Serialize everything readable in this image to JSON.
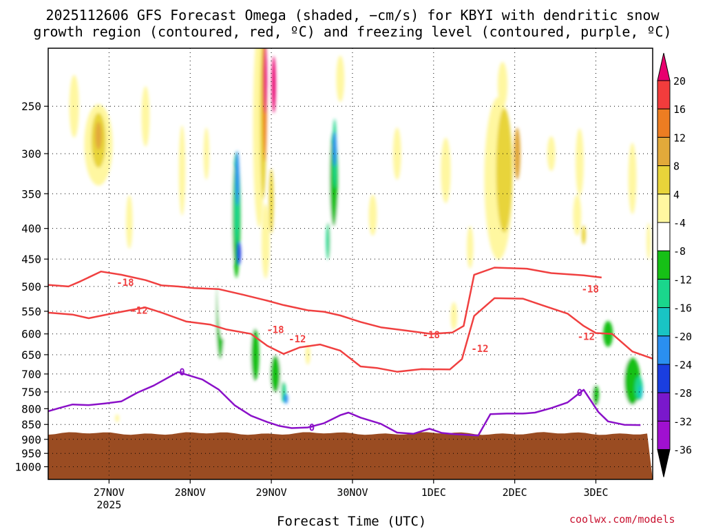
{
  "chart_data": {
    "type": "heatmap",
    "title_line1": "2025112606 GFS Forecast Omega (shaded, −cm/s) for KBYI with dendritic snow",
    "title_line2": "growth region (contoured, red, ºC) and freezing level (contoured, purple, ºC)",
    "xlabel": "Forecast Time (UTC)",
    "ylabel": "",
    "x_ticks": [
      {
        "label": "27NOV",
        "sub": "2025",
        "t": 0.75
      },
      {
        "label": "28NOV",
        "sub": "",
        "t": 1.75
      },
      {
        "label": "29NOV",
        "sub": "",
        "t": 2.75
      },
      {
        "label": "30NOV",
        "sub": "",
        "t": 3.75
      },
      {
        "label": "1DEC",
        "sub": "",
        "t": 4.75
      },
      {
        "label": "2DEC",
        "sub": "",
        "t": 5.75
      },
      {
        "label": "3DEC",
        "sub": "",
        "t": 6.75
      }
    ],
    "y_ticks": [
      250,
      300,
      350,
      400,
      450,
      500,
      550,
      600,
      650,
      700,
      750,
      800,
      850,
      900,
      950,
      1000
    ],
    "ylim_hPa": [
      200,
      1050
    ],
    "xlim_days": [
      0,
      7.45
    ],
    "surface_pressure_hPa": 880,
    "colorbar": {
      "levels": [
        "20",
        "16",
        "12",
        "8",
        "4",
        "-4",
        "-8",
        "-12",
        "-16",
        "-20",
        "-24",
        "-28",
        "-32",
        "-36"
      ],
      "colors": [
        "#e8006e",
        "#f23c3c",
        "#ed7d22",
        "#e2a93a",
        "#e8d43a",
        "#fff7a0",
        "#ffffff",
        "#16c016",
        "#1ad68c",
        "#19c4c4",
        "#2a8ff0",
        "#1a3ee0",
        "#7a18cc",
        "#a010d0",
        "#b4b4b4",
        "#000000"
      ]
    },
    "contours": {
      "dgz_minus18": {
        "label": "-18",
        "label_positions": [
          [
            0.95,
            492
          ],
          [
            2.8,
            590
          ],
          [
            4.72,
            602
          ],
          [
            6.68,
            505
          ]
        ],
        "points": [
          [
            0,
            497
          ],
          [
            0.25,
            500
          ],
          [
            0.4,
            490
          ],
          [
            0.65,
            472
          ],
          [
            0.9,
            478
          ],
          [
            1.2,
            488
          ],
          [
            1.4,
            498
          ],
          [
            1.6,
            500
          ],
          [
            1.8,
            503
          ],
          [
            2.1,
            505
          ],
          [
            2.4,
            516
          ],
          [
            2.7,
            528
          ],
          [
            2.9,
            537
          ],
          [
            3.2,
            548
          ],
          [
            3.4,
            551
          ],
          [
            3.6,
            559
          ],
          [
            3.85,
            573
          ],
          [
            4.1,
            585
          ],
          [
            4.4,
            592
          ],
          [
            4.72,
            600
          ],
          [
            4.98,
            597
          ],
          [
            5.12,
            582
          ],
          [
            5.25,
            478
          ],
          [
            5.5,
            465
          ],
          [
            5.9,
            467
          ],
          [
            6.2,
            475
          ],
          [
            6.6,
            479
          ],
          [
            6.82,
            483
          ]
        ]
      },
      "dgz_minus12": {
        "label": "-12",
        "label_positions": [
          [
            1.12,
            548
          ],
          [
            3.07,
            612
          ],
          [
            5.32,
            635
          ],
          [
            6.63,
            606
          ]
        ],
        "points": [
          [
            0,
            553
          ],
          [
            0.3,
            557
          ],
          [
            0.5,
            565
          ],
          [
            0.75,
            556
          ],
          [
            1.0,
            548
          ],
          [
            1.2,
            542
          ],
          [
            1.4,
            553
          ],
          [
            1.7,
            572
          ],
          [
            2.0,
            579
          ],
          [
            2.2,
            590
          ],
          [
            2.5,
            600
          ],
          [
            2.7,
            628
          ],
          [
            2.9,
            648
          ],
          [
            3.1,
            632
          ],
          [
            3.35,
            625
          ],
          [
            3.6,
            640
          ],
          [
            3.85,
            680
          ],
          [
            4.05,
            684
          ],
          [
            4.3,
            694
          ],
          [
            4.6,
            687
          ],
          [
            4.95,
            688
          ],
          [
            5.1,
            661
          ],
          [
            5.25,
            560
          ],
          [
            5.5,
            523
          ],
          [
            5.85,
            524
          ],
          [
            6.1,
            538
          ],
          [
            6.4,
            555
          ],
          [
            6.6,
            582
          ],
          [
            6.75,
            598
          ],
          [
            6.95,
            600
          ],
          [
            7.2,
            642
          ],
          [
            7.45,
            660
          ]
        ]
      },
      "freezing_level_0": {
        "label": "0",
        "label_positions": [
          [
            1.65,
            695
          ],
          [
            3.25,
            860
          ],
          [
            6.55,
            752
          ]
        ],
        "points": [
          [
            0,
            808
          ],
          [
            0.15,
            797
          ],
          [
            0.3,
            787
          ],
          [
            0.5,
            789
          ],
          [
            0.7,
            784
          ],
          [
            0.9,
            778
          ],
          [
            1.1,
            752
          ],
          [
            1.3,
            732
          ],
          [
            1.6,
            695
          ],
          [
            1.9,
            715
          ],
          [
            2.1,
            743
          ],
          [
            2.3,
            790
          ],
          [
            2.5,
            822
          ],
          [
            2.7,
            842
          ],
          [
            2.85,
            855
          ],
          [
            3.0,
            862
          ],
          [
            3.2,
            860
          ],
          [
            3.4,
            846
          ],
          [
            3.6,
            820
          ],
          [
            3.7,
            812
          ],
          [
            3.85,
            828
          ],
          [
            4.1,
            848
          ],
          [
            4.3,
            877
          ],
          [
            4.5,
            881
          ],
          [
            4.7,
            864
          ],
          [
            4.85,
            878
          ],
          [
            5.0,
            882
          ],
          [
            5.3,
            887
          ],
          [
            5.45,
            817
          ],
          [
            5.65,
            815
          ],
          [
            5.85,
            815
          ],
          [
            6.0,
            812
          ],
          [
            6.2,
            798
          ],
          [
            6.4,
            781
          ],
          [
            6.6,
            744
          ],
          [
            6.78,
            810
          ],
          [
            6.9,
            840
          ],
          [
            7.1,
            851
          ],
          [
            7.3,
            852
          ]
        ]
      }
    },
    "omega_blobs": [
      {
        "t": 0.62,
        "p": 290,
        "dt": 0.35,
        "dp": 90,
        "level": "4"
      },
      {
        "t": 0.62,
        "p": 285,
        "dt": 0.18,
        "dp": 60,
        "level": "8"
      },
      {
        "t": 0.62,
        "p": 280,
        "dt": 0.08,
        "dp": 30,
        "level": "12"
      },
      {
        "t": 0.15,
        "p": 330,
        "dt": 0.12,
        "dp": 50,
        "level": "-4"
      },
      {
        "t": 0.22,
        "p": 430,
        "dt": 0.1,
        "dp": 70,
        "level": "-4"
      },
      {
        "t": 0.32,
        "p": 250,
        "dt": 0.12,
        "dp": 60,
        "level": "4"
      },
      {
        "t": 1.0,
        "p": 390,
        "dt": 0.08,
        "dp": 80,
        "level": "4"
      },
      {
        "t": 1.2,
        "p": 260,
        "dt": 0.1,
        "dp": 60,
        "level": "4"
      },
      {
        "t": 0.55,
        "p": 610,
        "dt": 0.09,
        "dp": 60,
        "level": "-4"
      },
      {
        "t": 0.55,
        "p": 720,
        "dt": 0.06,
        "dp": 40,
        "level": "-4"
      },
      {
        "t": 1.65,
        "p": 320,
        "dt": 0.08,
        "dp": 110,
        "level": "4"
      },
      {
        "t": 1.95,
        "p": 300,
        "dt": 0.07,
        "dp": 60,
        "level": "4"
      },
      {
        "t": 2.1,
        "p": 600,
        "dt": 0.15,
        "dp": 260,
        "level": "-4"
      },
      {
        "t": 2.12,
        "p": 550,
        "dt": 0.1,
        "dp": 200,
        "level": "-8"
      },
      {
        "t": 2.15,
        "p": 480,
        "dt": 0.14,
        "dp": 230,
        "level": "-4"
      },
      {
        "t": 2.25,
        "p": 380,
        "dt": 0.18,
        "dp": 140,
        "level": "-4"
      },
      {
        "t": 2.32,
        "p": 380,
        "dt": 0.1,
        "dp": 180,
        "level": "-8"
      },
      {
        "t": 2.32,
        "p": 360,
        "dt": 0.07,
        "dp": 120,
        "level": "-12"
      },
      {
        "t": 2.33,
        "p": 330,
        "dt": 0.04,
        "dp": 70,
        "level": "-20"
      },
      {
        "t": 2.35,
        "p": 440,
        "dt": 0.04,
        "dp": 40,
        "level": "-24"
      },
      {
        "t": 2.5,
        "p": 620,
        "dt": 0.14,
        "dp": 180,
        "level": "-4"
      },
      {
        "t": 2.55,
        "p": 650,
        "dt": 0.1,
        "dp": 130,
        "level": "-8"
      },
      {
        "t": 2.6,
        "p": 760,
        "dt": 0.13,
        "dp": 80,
        "level": "-4"
      },
      {
        "t": 2.82,
        "p": 700,
        "dt": 0.2,
        "dp": 130,
        "level": "-4"
      },
      {
        "t": 2.8,
        "p": 700,
        "dt": 0.12,
        "dp": 100,
        "level": "-8"
      },
      {
        "t": 2.9,
        "p": 750,
        "dt": 0.06,
        "dp": 60,
        "level": "-12"
      },
      {
        "t": 2.93,
        "p": 770,
        "dt": 0.03,
        "dp": 30,
        "level": "-20"
      },
      {
        "t": 3.05,
        "p": 700,
        "dt": 0.1,
        "dp": 90,
        "level": "-4"
      },
      {
        "t": 2.6,
        "p": 270,
        "dt": 0.15,
        "dp": 200,
        "level": "4"
      },
      {
        "t": 2.65,
        "p": 260,
        "dt": 0.08,
        "dp": 160,
        "level": "8"
      },
      {
        "t": 2.67,
        "p": 240,
        "dt": 0.05,
        "dp": 120,
        "level": "16"
      },
      {
        "t": 2.67,
        "p": 225,
        "dt": 0.035,
        "dp": 60,
        "level": "20"
      },
      {
        "t": 2.78,
        "p": 230,
        "dt": 0.04,
        "dp": 50,
        "level": "20"
      },
      {
        "t": 2.75,
        "p": 360,
        "dt": 0.06,
        "dp": 90,
        "level": "8"
      },
      {
        "t": 2.68,
        "p": 420,
        "dt": 0.1,
        "dp": 120,
        "level": "4"
      },
      {
        "t": 3.5,
        "p": 360,
        "dt": 0.14,
        "dp": 160,
        "level": "-4"
      },
      {
        "t": 3.52,
        "p": 330,
        "dt": 0.1,
        "dp": 120,
        "level": "-8"
      },
      {
        "t": 3.53,
        "p": 300,
        "dt": 0.05,
        "dp": 80,
        "level": "-12"
      },
      {
        "t": 3.53,
        "p": 295,
        "dt": 0.025,
        "dp": 40,
        "level": "-20"
      },
      {
        "t": 3.45,
        "p": 420,
        "dt": 0.05,
        "dp": 60,
        "level": "-12"
      },
      {
        "t": 3.85,
        "p": 360,
        "dt": 0.1,
        "dp": 200,
        "level": "-4"
      },
      {
        "t": 3.25,
        "p": 340,
        "dt": 0.05,
        "dp": 80,
        "level": "-4"
      },
      {
        "t": 3.35,
        "p": 580,
        "dt": 0.12,
        "dp": 90,
        "level": "-4"
      },
      {
        "t": 3.65,
        "p": 620,
        "dt": 0.1,
        "dp": 100,
        "level": "-4"
      },
      {
        "t": 4.05,
        "p": 780,
        "dt": 0.06,
        "dp": 40,
        "level": "-4"
      },
      {
        "t": 3.6,
        "p": 225,
        "dt": 0.1,
        "dp": 40,
        "level": "4"
      },
      {
        "t": 4.3,
        "p": 300,
        "dt": 0.1,
        "dp": 60,
        "level": "4"
      },
      {
        "t": 4.0,
        "p": 380,
        "dt": 0.1,
        "dp": 60,
        "level": "4"
      },
      {
        "t": 4.9,
        "p": 320,
        "dt": 0.12,
        "dp": 80,
        "level": "4"
      },
      {
        "t": 5.55,
        "p": 330,
        "dt": 0.35,
        "dp": 200,
        "level": "4"
      },
      {
        "t": 5.62,
        "p": 320,
        "dt": 0.2,
        "dp": 150,
        "level": "8"
      },
      {
        "t": 5.78,
        "p": 300,
        "dt": 0.08,
        "dp": 60,
        "level": "12"
      },
      {
        "t": 5.6,
        "p": 230,
        "dt": 0.12,
        "dp": 40,
        "level": "4"
      },
      {
        "t": 6.2,
        "p": 300,
        "dt": 0.1,
        "dp": 40,
        "level": "4"
      },
      {
        "t": 6.55,
        "p": 310,
        "dt": 0.1,
        "dp": 80,
        "level": "4"
      },
      {
        "t": 6.52,
        "p": 380,
        "dt": 0.1,
        "dp": 60,
        "level": "4"
      },
      {
        "t": 6.6,
        "p": 410,
        "dt": 0.05,
        "dp": 30,
        "level": "8"
      },
      {
        "t": 5.0,
        "p": 560,
        "dt": 0.08,
        "dp": 60,
        "level": "4"
      },
      {
        "t": 5.0,
        "p": 620,
        "dt": 0.06,
        "dp": 40,
        "level": "-4"
      },
      {
        "t": 5.2,
        "p": 430,
        "dt": 0.08,
        "dp": 70,
        "level": "4"
      },
      {
        "t": 6.95,
        "p": 270,
        "dt": 0.05,
        "dp": 50,
        "level": "-4"
      },
      {
        "t": 7.2,
        "p": 330,
        "dt": 0.1,
        "dp": 90,
        "level": "4"
      },
      {
        "t": 7.35,
        "p": 300,
        "dt": 0.06,
        "dp": 60,
        "level": "-4"
      },
      {
        "t": 7.4,
        "p": 420,
        "dt": 0.05,
        "dp": 60,
        "level": "4"
      },
      {
        "t": 7.15,
        "p": 740,
        "dt": 0.3,
        "dp": 170,
        "level": "-4"
      },
      {
        "t": 7.2,
        "p": 720,
        "dt": 0.2,
        "dp": 130,
        "level": "-8"
      },
      {
        "t": 7.28,
        "p": 740,
        "dt": 0.1,
        "dp": 70,
        "level": "-12"
      },
      {
        "t": 7.3,
        "p": 750,
        "dt": 0.05,
        "dp": 40,
        "level": "-16"
      },
      {
        "t": 6.9,
        "p": 600,
        "dt": 0.12,
        "dp": 60,
        "level": "-8"
      },
      {
        "t": 6.7,
        "p": 770,
        "dt": 0.18,
        "dp": 90,
        "level": "-4"
      },
      {
        "t": 6.75,
        "p": 760,
        "dt": 0.08,
        "dp": 60,
        "level": "-8"
      },
      {
        "t": 6.4,
        "p": 820,
        "dt": 0.08,
        "dp": 40,
        "level": "-4"
      },
      {
        "t": 6.1,
        "p": 760,
        "dt": 0.05,
        "dp": 25,
        "level": "-4"
      },
      {
        "t": 7.4,
        "p": 580,
        "dt": 0.06,
        "dp": 40,
        "level": "-4"
      },
      {
        "t": 1.8,
        "p": 800,
        "dt": 0.05,
        "dp": 40,
        "level": "-4"
      },
      {
        "t": 3.2,
        "p": 650,
        "dt": 0.06,
        "dp": 50,
        "level": "4"
      },
      {
        "t": 0.85,
        "p": 830,
        "dt": 0.03,
        "dp": 25,
        "level": "4"
      }
    ]
  },
  "credit": "coolwx.com/models"
}
